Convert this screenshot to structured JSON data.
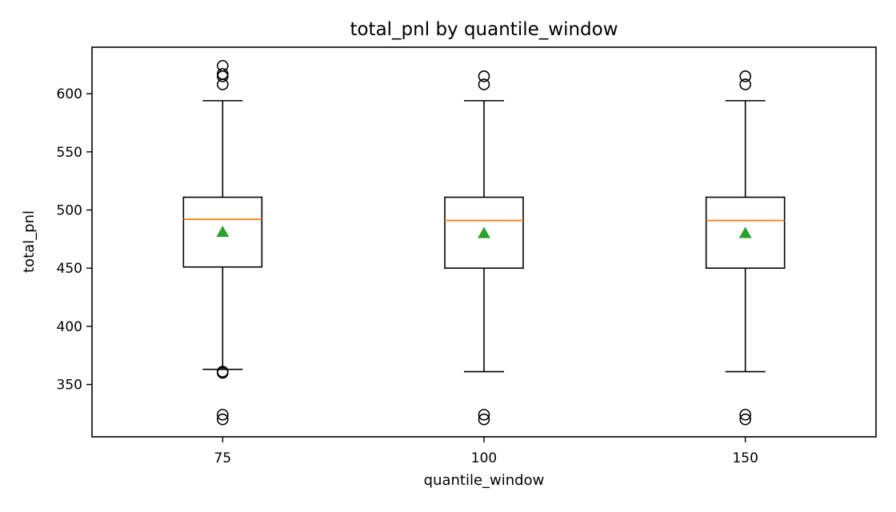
{
  "chart_data": {
    "type": "box",
    "title": "total_pnl by quantile_window",
    "xlabel": "quantile_window",
    "ylabel": "total_pnl",
    "categories": [
      "75",
      "100",
      "150"
    ],
    "ylim": [
      305,
      640
    ],
    "yticks": [
      350,
      400,
      450,
      500,
      550,
      600
    ],
    "boxes": [
      {
        "category": "75",
        "whisker_low": 363,
        "q1": 451,
        "median": 492,
        "q3": 511,
        "whisker_high": 594,
        "mean": 481,
        "outliers": [
          320,
          324,
          360,
          361,
          608,
          615,
          617,
          624
        ]
      },
      {
        "category": "100",
        "whisker_low": 361,
        "q1": 450,
        "median": 491,
        "q3": 511,
        "whisker_high": 594,
        "mean": 480,
        "outliers": [
          320,
          324,
          608,
          615
        ]
      },
      {
        "category": "150",
        "whisker_low": 361,
        "q1": 450,
        "median": 491,
        "q3": 511,
        "whisker_high": 594,
        "mean": 480,
        "outliers": [
          320,
          324,
          608,
          615
        ]
      }
    ],
    "grid": false,
    "colors": {
      "box": "#000000",
      "median": "#ff7f0e",
      "mean": "#2ca02c"
    }
  }
}
